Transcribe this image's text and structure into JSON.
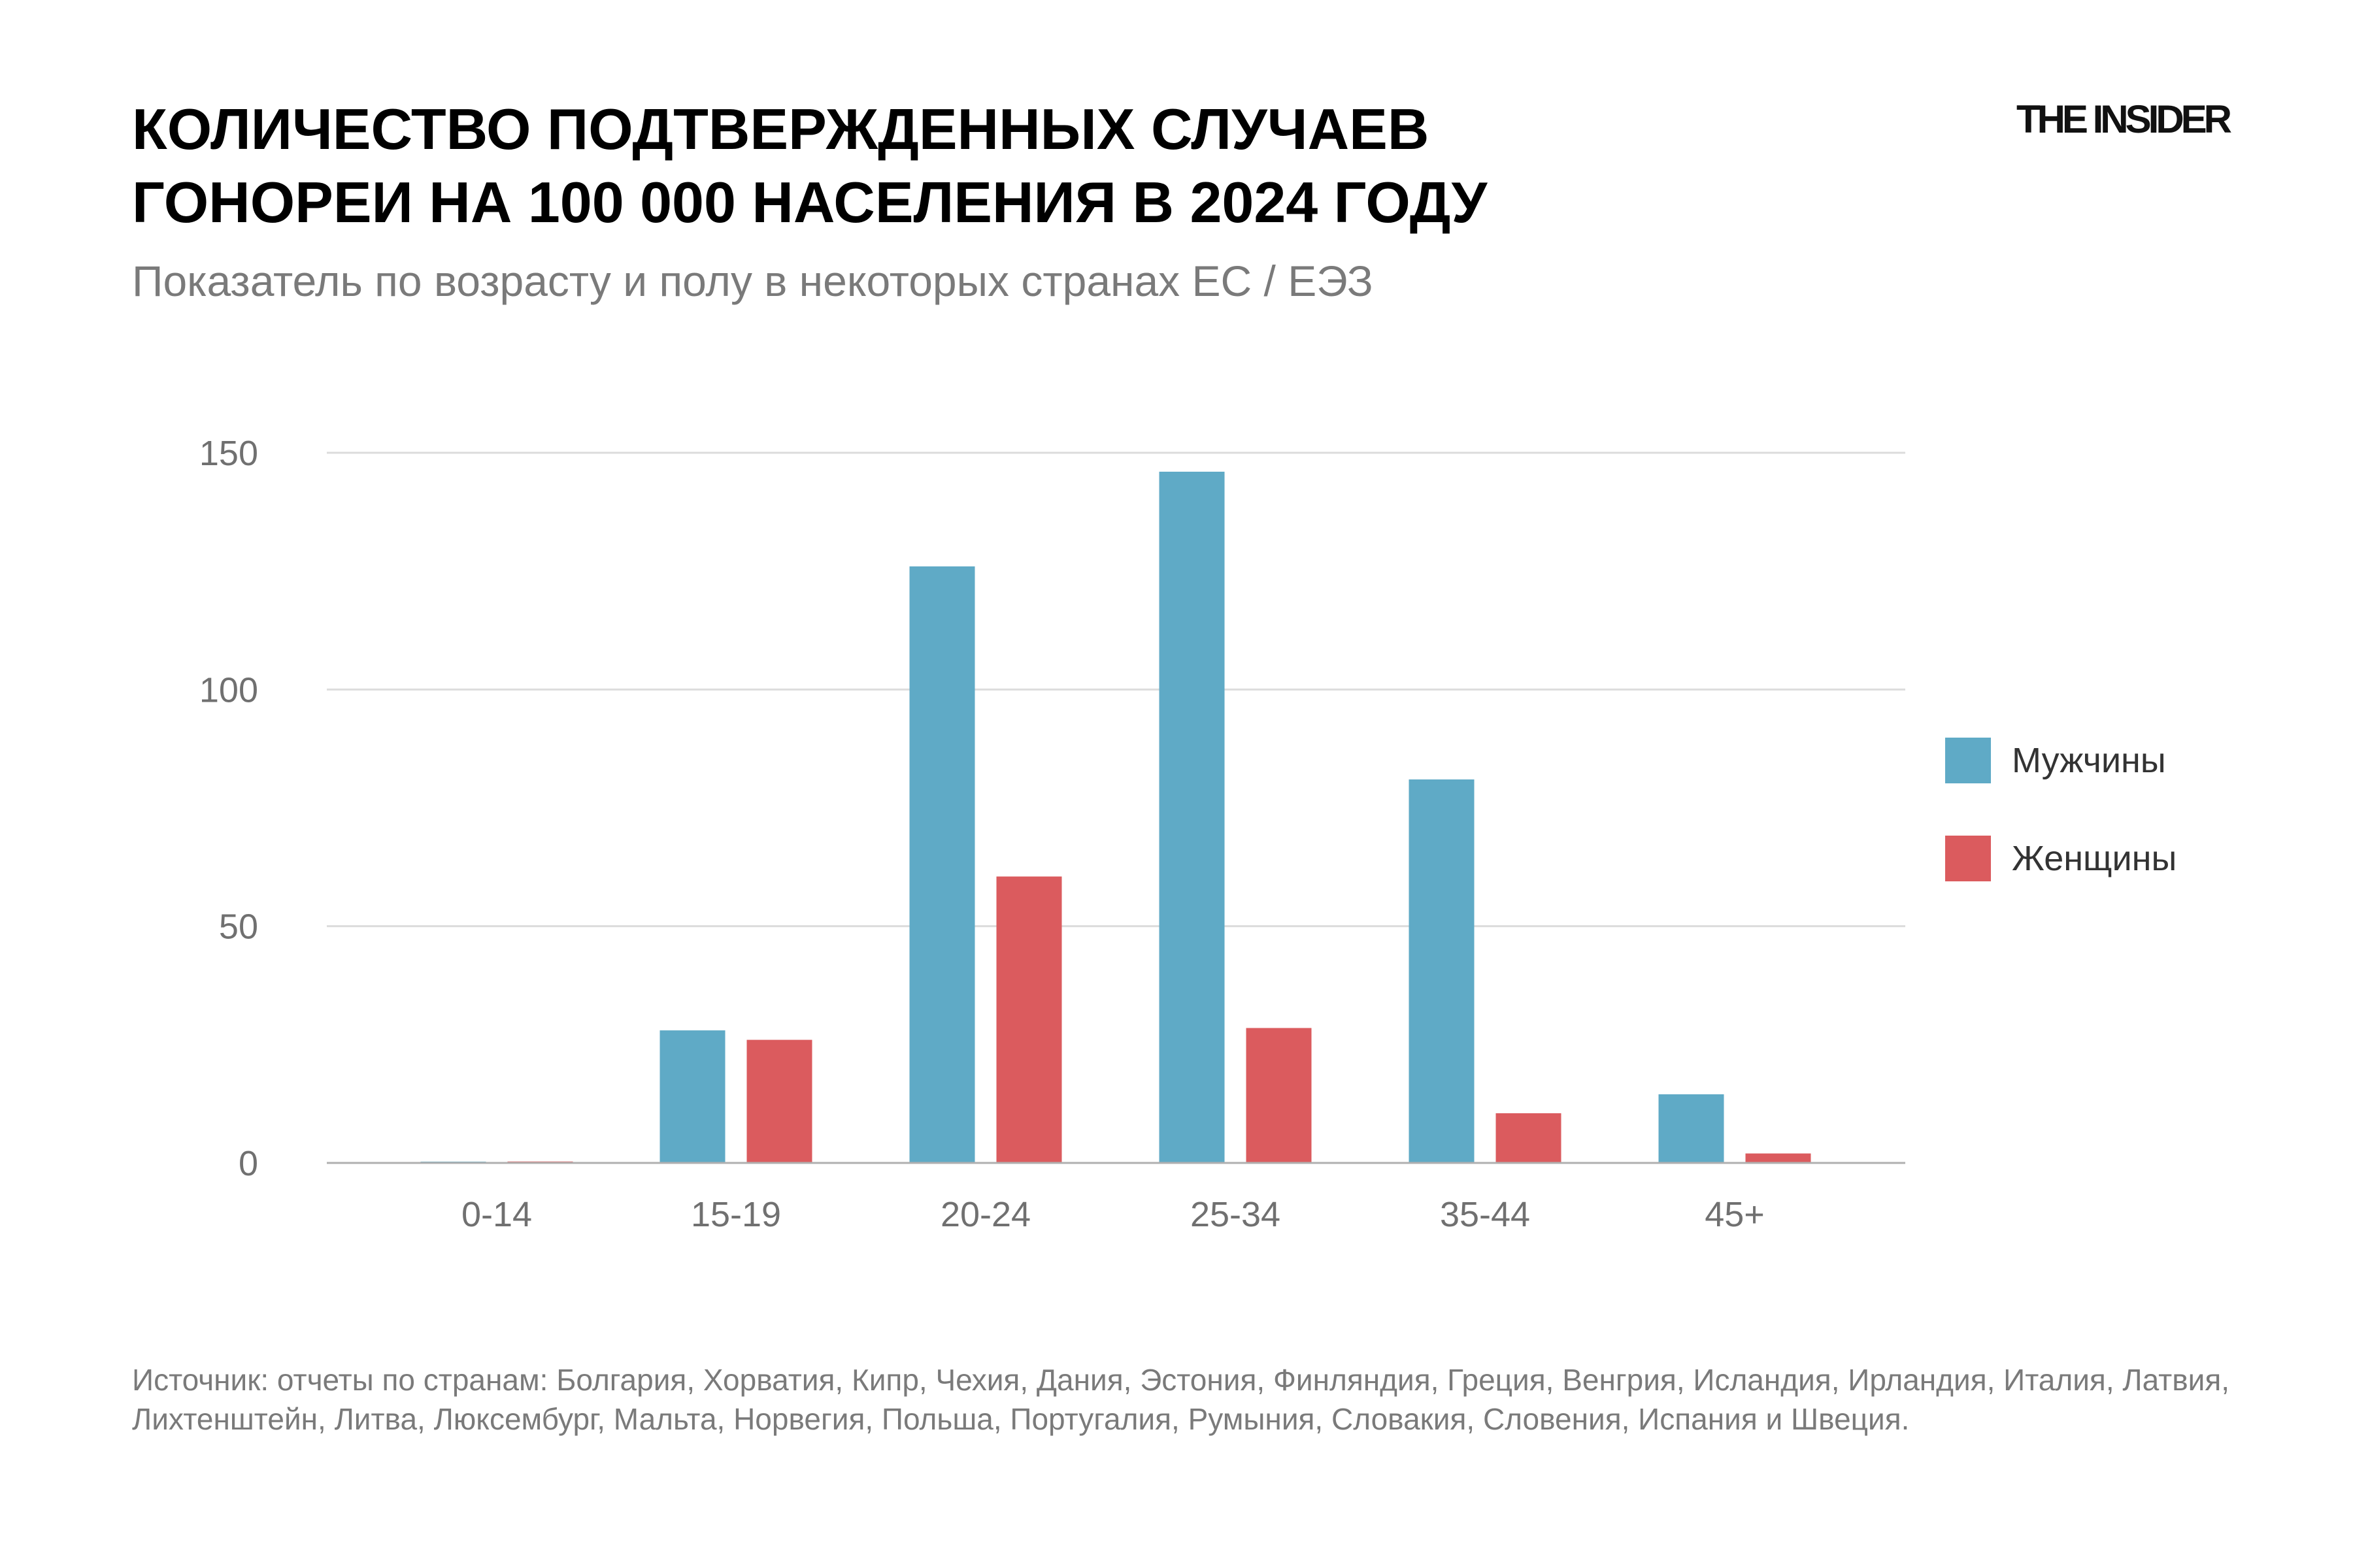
{
  "header": {
    "title_line1": "КОЛИЧЕСТВО ПОДТВЕРЖДЕННЫХ СЛУЧАЕВ",
    "title_line2": "ГОНОРЕИ НА 100 000 НАСЕЛЕНИЯ В 2024 ГОДУ",
    "subtitle": "Показатель по возрасту и полу в некоторых странах ЕС / ЕЭЗ",
    "logo": "THE INSIDER"
  },
  "footer": {
    "source": "Источник: отчеты по странам: Болгария, Хорватия, Кипр, Чехия, Дания, Эстония, Финляндия, Греция, Венгрия, Исландия, Ирландия, Италия, Латвия, Лихтенштейн, Литва, Люксембург, Мальта, Норвегия, Польша, Португалия, Румыния, Словакия, Словения, Испания и Швеция."
  },
  "colors": {
    "male": "#5faac6",
    "female": "#db5b5e",
    "grid": "#dcdcdc",
    "axis": "#b0b0b0"
  },
  "chart_data": {
    "type": "bar",
    "title": "КОЛИЧЕСТВО ПОДТВЕРЖДЕННЫХ СЛУЧАЕВ ГОНОРЕИ НА 100 000 НАСЕЛЕНИЯ В 2024 ГОДУ",
    "subtitle": "Показатель по возрасту и полу в некоторых странах ЕС / ЕЭЗ",
    "categories": [
      "0-14",
      "15-19",
      "20-24",
      "25-34",
      "35-44",
      "45+"
    ],
    "series": [
      {
        "name": "Мужчины",
        "color": "#5faac6",
        "values": [
          0,
          28,
          126,
          146,
          81,
          14.5
        ]
      },
      {
        "name": "Женщины",
        "color": "#db5b5e",
        "values": [
          0.3,
          26,
          60.5,
          28.5,
          10.5,
          2
        ]
      }
    ],
    "yticks": [
      0,
      50,
      100,
      150
    ],
    "ylim": [
      0,
      150
    ],
    "grid": true,
    "legend": "right",
    "xlabel": "",
    "ylabel": ""
  }
}
